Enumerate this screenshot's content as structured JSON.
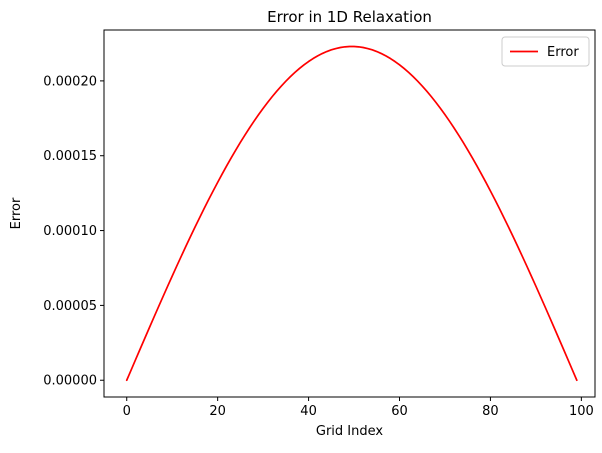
{
  "chart_data": {
    "type": "line",
    "title": "Error in 1D Relaxation",
    "xlabel": "Grid Index",
    "ylabel": "Error",
    "xlim": [
      -5,
      103
    ],
    "ylim": [
      -1.12e-05,
      0.000234
    ],
    "xticks": [
      0,
      20,
      40,
      60,
      80,
      100
    ],
    "xtick_labels": [
      "0",
      "20",
      "40",
      "60",
      "80",
      "100"
    ],
    "yticks": [
      0,
      5e-05,
      0.0001,
      0.00015,
      0.0002
    ],
    "ytick_labels": [
      "0.00000",
      "0.00005",
      "0.00010",
      "0.00015",
      "0.00020"
    ],
    "grid": false,
    "legend": {
      "position": "top-right"
    },
    "series": [
      {
        "name": "Error",
        "color": "#ff0000",
        "x_start": 0,
        "x_end": 99,
        "num_points": 100,
        "peak_x": 49,
        "peak_y": 0.000223,
        "shape": "half-sine from (0, 0) to (99, 0)"
      }
    ]
  }
}
